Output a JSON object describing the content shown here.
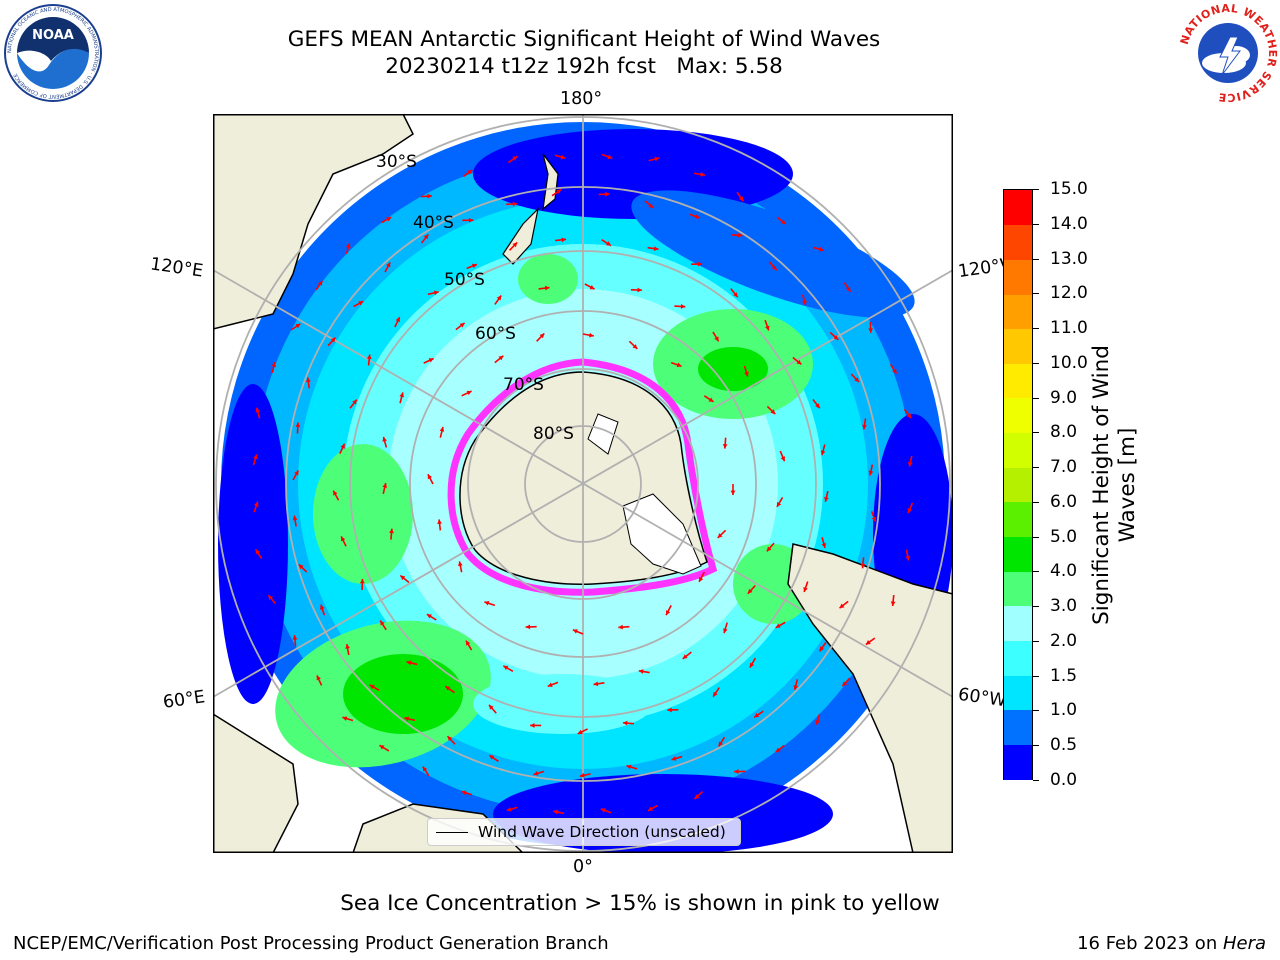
{
  "title": {
    "line1": "GEFS MEAN Antarctic Significant Height of Wind Waves",
    "line2": "20230214 t12z 192h fcst   Max: 5.58"
  },
  "logos": {
    "left_icon": "noaa-logo-icon",
    "left_text": "NOAA",
    "left_ring_text": "NATIONAL OCEANIC AND ATMOSPHERIC ADMINISTRATION · U.S. DEPARTMENT OF COMMERCE",
    "right_icon": "national-weather-service-logo-icon",
    "right_ring_text": "NATIONAL WEATHER SERVICE"
  },
  "map": {
    "projection": "south-polar-stereographic",
    "lon_labels": {
      "top": "180°",
      "bottom": "0°",
      "left_upper": "120°E",
      "left_lower": "60°E",
      "right_upper": "120°W",
      "right_lower": "60°W"
    },
    "lat_labels": [
      "30°S",
      "40°S",
      "50°S",
      "60°S",
      "70°S",
      "80°S"
    ],
    "legend_label": "Wind Wave Direction (unscaled)",
    "arrow_color": "#ff0000"
  },
  "colorbar": {
    "title_line1": "Significant Height of Wind",
    "title_line2": "Waves [m]",
    "ticks": [
      "0.0",
      "0.5",
      "1.0",
      "1.5",
      "2.0",
      "3.0",
      "4.0",
      "5.0",
      "6.0",
      "7.0",
      "8.0",
      "9.0",
      "10.0",
      "11.0",
      "12.0",
      "13.0",
      "14.0",
      "15.0"
    ],
    "colors": [
      "#0000ff",
      "#0072ff",
      "#00e5ff",
      "#3cffff",
      "#a0ffff",
      "#4dff78",
      "#00e600",
      "#5af000",
      "#b4f000",
      "#d2ff00",
      "#f0ff00",
      "#ffeb00",
      "#ffc800",
      "#ffa000",
      "#ff7800",
      "#ff4600",
      "#ff0000"
    ]
  },
  "note": "Sea Ice Concentration > 15% is shown in pink to yellow",
  "footer": {
    "left": "NCEP/EMC/Verification Post Processing Product Generation Branch",
    "right_date": "16 Feb 2023 on ",
    "right_machine": "Hera"
  }
}
